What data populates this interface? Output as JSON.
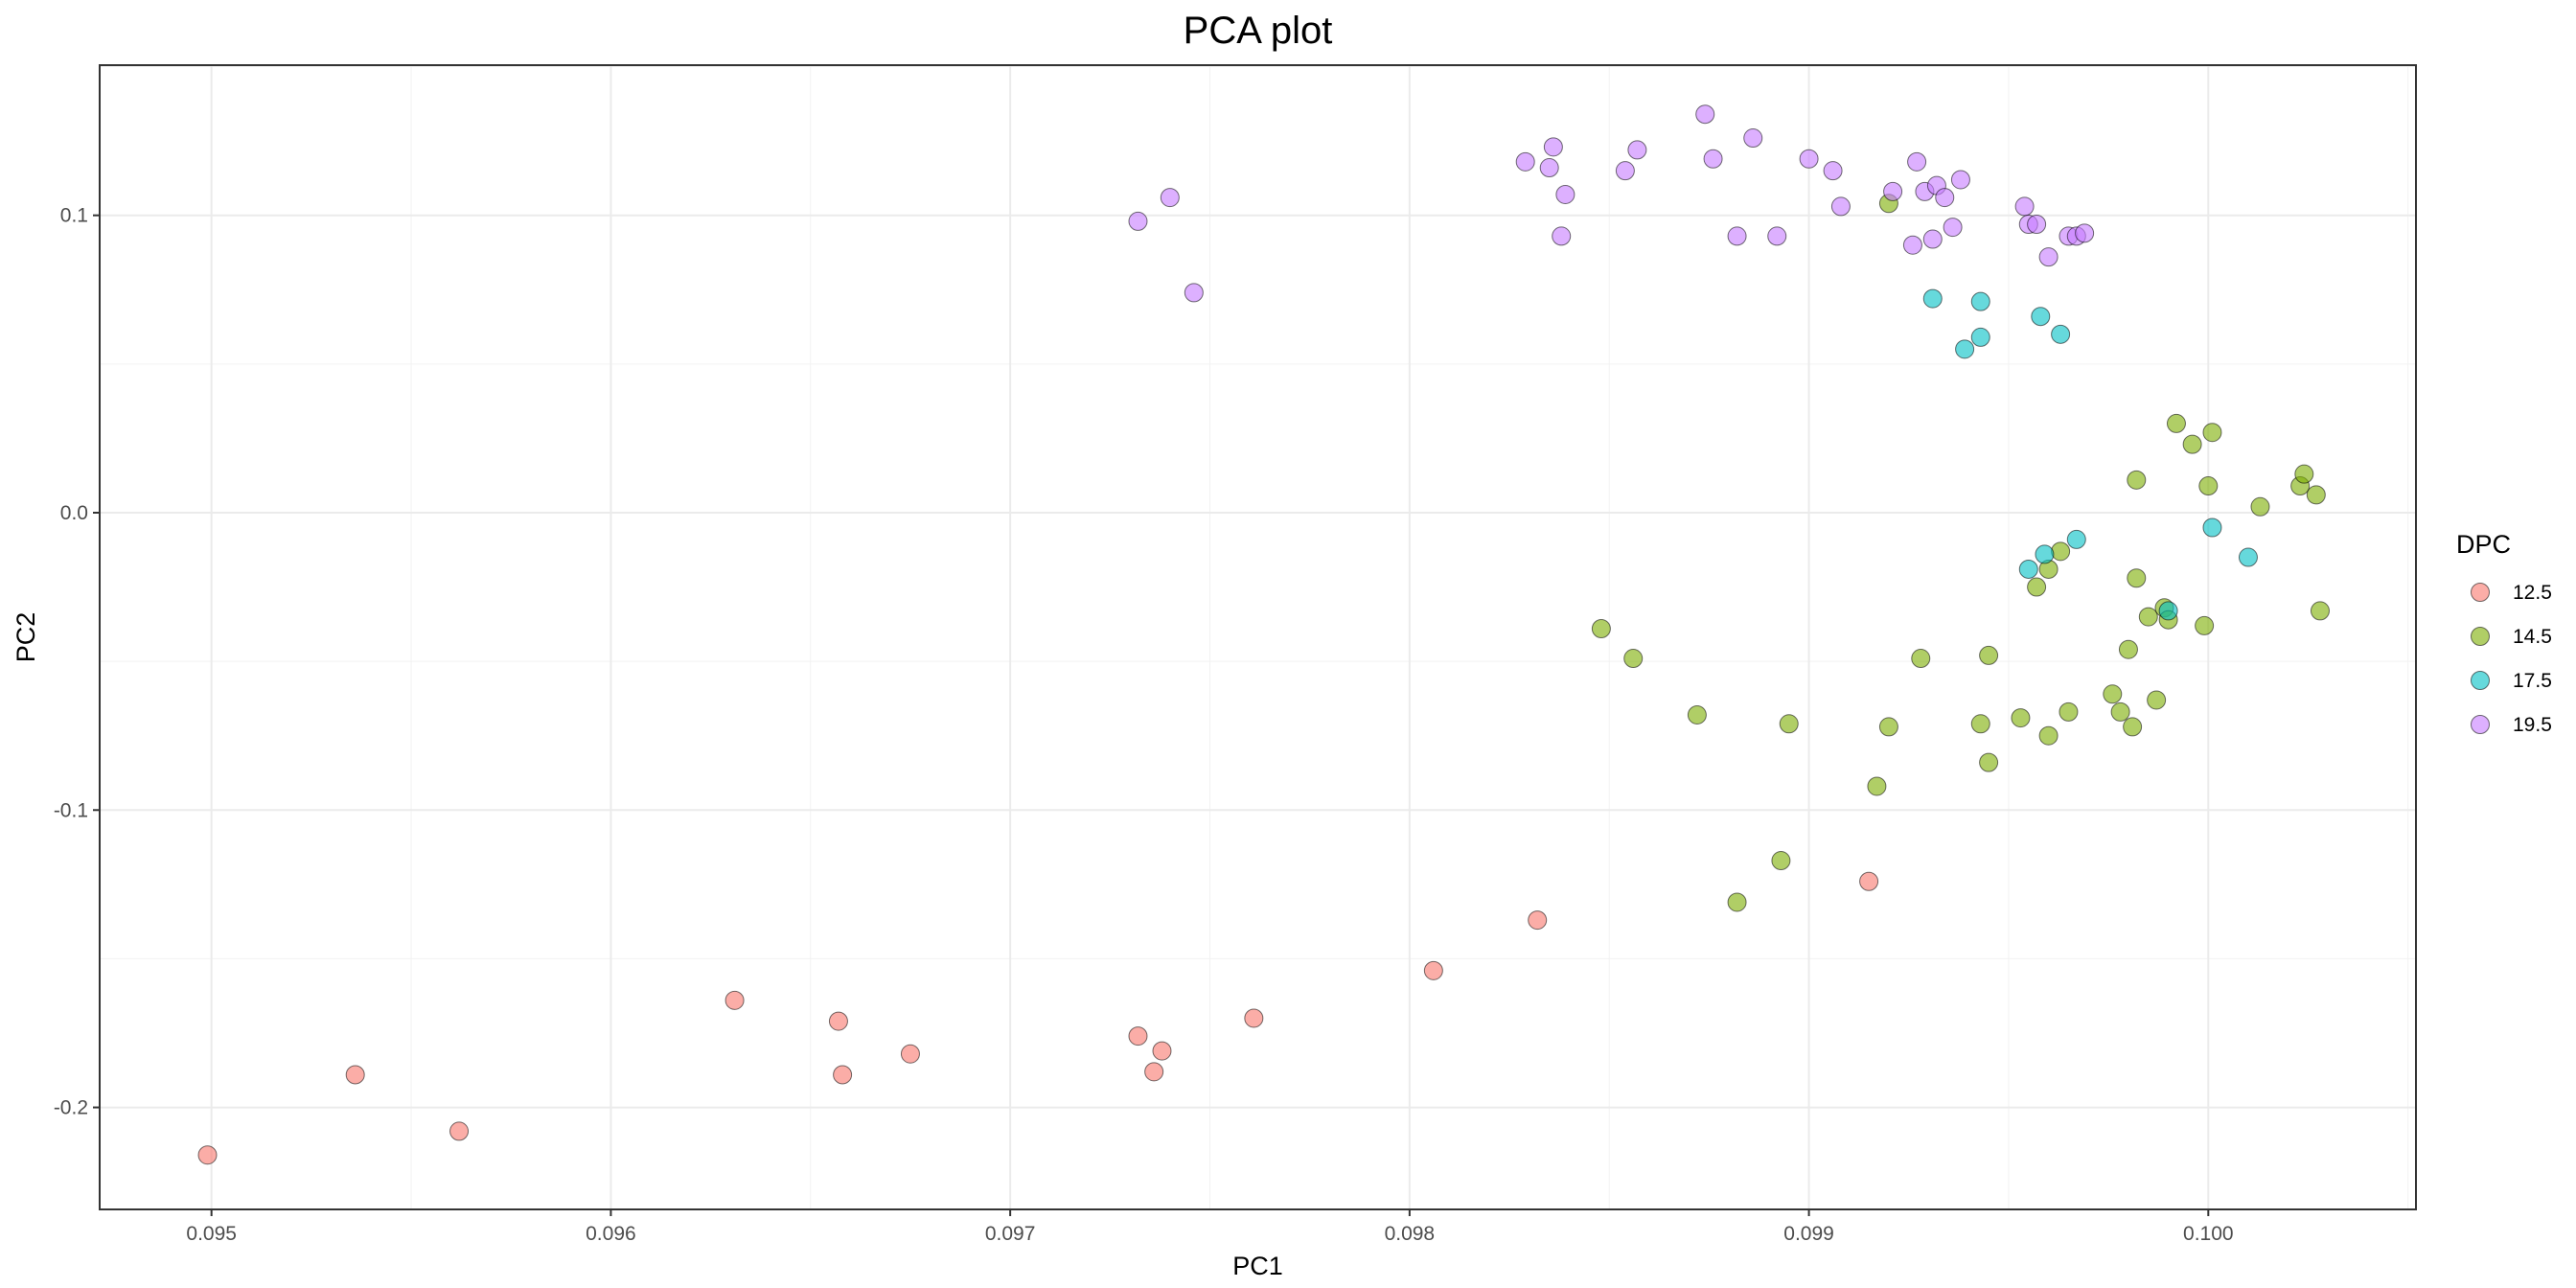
{
  "chart_data": {
    "type": "scatter",
    "title": "PCA plot",
    "xlabel": "PC1",
    "ylabel": "PC2",
    "xlim": [
      0.09472,
      0.10052
    ],
    "ylim": [
      -0.2343,
      0.1505
    ],
    "xticks": [
      0.095,
      0.096,
      0.097,
      0.098,
      0.099,
      0.1
    ],
    "xtick_labels": [
      "0.095",
      "0.096",
      "0.097",
      "0.098",
      "0.099",
      "0.100"
    ],
    "yticks": [
      -0.2,
      -0.1,
      0.0,
      0.1
    ],
    "ytick_labels": [
      "-0.2",
      "-0.1",
      "0.0",
      "0.1"
    ],
    "grid": true,
    "legend": {
      "title": "DPC",
      "position": "right"
    },
    "series": [
      {
        "name": "12.5",
        "color": "#F8766D",
        "points": [
          [
            0.09499,
            -0.216
          ],
          [
            0.09536,
            -0.189
          ],
          [
            0.09562,
            -0.208
          ],
          [
            0.09631,
            -0.164
          ],
          [
            0.09657,
            -0.171
          ],
          [
            0.09658,
            -0.189
          ],
          [
            0.09675,
            -0.182
          ],
          [
            0.09732,
            -0.176
          ],
          [
            0.09736,
            -0.188
          ],
          [
            0.09738,
            -0.181
          ],
          [
            0.09761,
            -0.17
          ],
          [
            0.09806,
            -0.154
          ],
          [
            0.09832,
            -0.137
          ],
          [
            0.09915,
            -0.124
          ]
        ]
      },
      {
        "name": "14.5",
        "color": "#7CAE00",
        "points": [
          [
            0.0992,
            0.104
          ],
          [
            0.09848,
            -0.039
          ],
          [
            0.09856,
            -0.049
          ],
          [
            0.09872,
            -0.068
          ],
          [
            0.09882,
            -0.131
          ],
          [
            0.09893,
            -0.117
          ],
          [
            0.09895,
            -0.071
          ],
          [
            0.09917,
            -0.092
          ],
          [
            0.0992,
            -0.072
          ],
          [
            0.09928,
            -0.049
          ],
          [
            0.09943,
            -0.071
          ],
          [
            0.09945,
            -0.048
          ],
          [
            0.09945,
            -0.084
          ],
          [
            0.09953,
            -0.069
          ],
          [
            0.09957,
            -0.025
          ],
          [
            0.0996,
            -0.019
          ],
          [
            0.0996,
            -0.075
          ],
          [
            0.09963,
            -0.013
          ],
          [
            0.09965,
            -0.067
          ],
          [
            0.09976,
            -0.061
          ],
          [
            0.09978,
            -0.067
          ],
          [
            0.0998,
            -0.046
          ],
          [
            0.09981,
            -0.072
          ],
          [
            0.09982,
            0.011
          ],
          [
            0.09982,
            -0.022
          ],
          [
            0.09985,
            -0.035
          ],
          [
            0.09987,
            -0.063
          ],
          [
            0.09989,
            -0.032
          ],
          [
            0.0999,
            -0.036
          ],
          [
            0.09992,
            0.03
          ],
          [
            0.09996,
            0.023
          ],
          [
            0.09999,
            -0.038
          ],
          [
            0.1,
            0.009
          ],
          [
            0.10001,
            0.027
          ],
          [
            0.10013,
            0.002
          ],
          [
            0.10023,
            0.009
          ],
          [
            0.10024,
            0.013
          ],
          [
            0.10027,
            0.006
          ],
          [
            0.10028,
            -0.033
          ]
        ]
      },
      {
        "name": "17.5",
        "color": "#00BFC4",
        "points": [
          [
            0.09931,
            0.072
          ],
          [
            0.09939,
            0.055
          ],
          [
            0.09943,
            0.071
          ],
          [
            0.09943,
            0.059
          ],
          [
            0.09958,
            0.066
          ],
          [
            0.09963,
            0.06
          ],
          [
            0.09955,
            -0.019
          ],
          [
            0.09959,
            -0.014
          ],
          [
            0.09967,
            -0.009
          ],
          [
            0.0999,
            -0.033
          ],
          [
            0.10001,
            -0.005
          ],
          [
            0.1001,
            -0.015
          ]
        ]
      },
      {
        "name": "19.5",
        "color": "#C77CFF",
        "points": [
          [
            0.09732,
            0.098
          ],
          [
            0.0974,
            0.106
          ],
          [
            0.09746,
            0.074
          ],
          [
            0.09829,
            0.118
          ],
          [
            0.09835,
            0.116
          ],
          [
            0.09836,
            0.123
          ],
          [
            0.09838,
            0.093
          ],
          [
            0.09839,
            0.107
          ],
          [
            0.09854,
            0.115
          ],
          [
            0.09857,
            0.122
          ],
          [
            0.09874,
            0.134
          ],
          [
            0.09876,
            0.119
          ],
          [
            0.09882,
            0.093
          ],
          [
            0.09886,
            0.126
          ],
          [
            0.09892,
            0.093
          ],
          [
            0.099,
            0.119
          ],
          [
            0.09906,
            0.115
          ],
          [
            0.09908,
            0.103
          ],
          [
            0.09921,
            0.108
          ],
          [
            0.09926,
            0.09
          ],
          [
            0.09927,
            0.118
          ],
          [
            0.09929,
            0.108
          ],
          [
            0.09931,
            0.092
          ],
          [
            0.09932,
            0.11
          ],
          [
            0.09934,
            0.106
          ],
          [
            0.09936,
            0.096
          ],
          [
            0.09938,
            0.112
          ],
          [
            0.09954,
            0.103
          ],
          [
            0.09955,
            0.097
          ],
          [
            0.09957,
            0.097
          ],
          [
            0.0996,
            0.086
          ],
          [
            0.09965,
            0.093
          ],
          [
            0.09967,
            0.093
          ],
          [
            0.09969,
            0.094
          ]
        ]
      }
    ]
  }
}
